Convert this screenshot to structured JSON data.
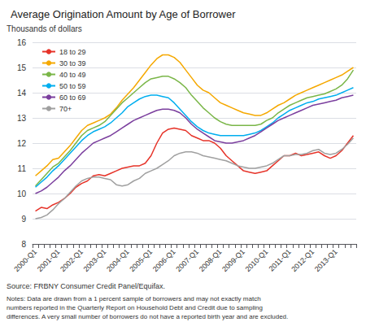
{
  "chart_data": {
    "type": "line",
    "title": "Average Origination Amount by Age of Borrower",
    "ylabel": "Thousands of dollars",
    "annotations": [
      "Source: FRBNY Consumer Credit Panel/Equifax.",
      "Notes: Data are drawn from a 1 percent sample of borrowers and may not exactly match\nnumbers reported in the Quarterly Report on Household Debt and Credit due to sampling\ndifferences. A very small number of borrowers do not have a reported birth year and are excluded."
    ],
    "categories": [
      "2000-Q1",
      null,
      null,
      null,
      "2001-Q1",
      null,
      null,
      null,
      "2002-Q1",
      null,
      null,
      null,
      "2003-Q1",
      null,
      null,
      null,
      "2004-Q1",
      null,
      null,
      null,
      "2005-Q1",
      null,
      null,
      null,
      "2006-Q1",
      null,
      null,
      null,
      "2007-Q1",
      null,
      null,
      null,
      "2008-Q1",
      null,
      null,
      null,
      "2009-Q1",
      null,
      null,
      null,
      "2010-Q1",
      null,
      null,
      null,
      "2011-Q1",
      null,
      null,
      null,
      "2012-Q1",
      null,
      null,
      null,
      "2013-Q1",
      null,
      null,
      null
    ],
    "series": [
      {
        "name": "18 to 29",
        "color": "#e63329",
        "values": [
          9.3,
          9.45,
          9.4,
          9.55,
          9.65,
          9.8,
          10.0,
          10.25,
          10.4,
          10.5,
          10.7,
          10.75,
          10.7,
          10.8,
          10.9,
          11.0,
          11.05,
          11.1,
          11.1,
          11.2,
          11.5,
          12.0,
          12.4,
          12.55,
          12.6,
          12.55,
          12.5,
          12.3,
          12.2,
          12.1,
          12.1,
          12.0,
          11.8,
          11.5,
          11.3,
          11.1,
          10.9,
          10.85,
          10.8,
          10.85,
          10.9,
          11.1,
          11.3,
          11.5,
          11.5,
          11.6,
          11.5,
          11.55,
          11.6,
          11.65,
          11.5,
          11.4,
          11.5,
          11.7,
          12.0,
          12.3
        ]
      },
      {
        "name": "30 to 39",
        "color": "#f5a800",
        "values": [
          10.7,
          10.9,
          11.1,
          11.35,
          11.4,
          11.65,
          11.9,
          12.2,
          12.5,
          12.7,
          12.8,
          12.9,
          13.0,
          13.15,
          13.4,
          13.7,
          13.95,
          14.2,
          14.5,
          14.8,
          15.1,
          15.35,
          15.5,
          15.5,
          15.4,
          15.2,
          14.9,
          14.6,
          14.3,
          14.1,
          14.0,
          13.8,
          13.6,
          13.5,
          13.4,
          13.3,
          13.2,
          13.15,
          13.1,
          13.1,
          13.2,
          13.35,
          13.5,
          13.6,
          13.75,
          13.9,
          14.0,
          14.1,
          14.2,
          14.3,
          14.4,
          14.5,
          14.6,
          14.7,
          14.85,
          15.0
        ]
      },
      {
        "name": "40 to 49",
        "color": "#7ab648",
        "values": [
          10.3,
          10.55,
          10.8,
          11.05,
          11.2,
          11.45,
          11.7,
          12.0,
          12.3,
          12.5,
          12.6,
          12.7,
          12.85,
          13.1,
          13.35,
          13.6,
          13.8,
          14.0,
          14.2,
          14.4,
          14.55,
          14.6,
          14.65,
          14.65,
          14.55,
          14.4,
          14.2,
          13.9,
          13.65,
          13.4,
          13.2,
          13.0,
          12.85,
          12.75,
          12.7,
          12.7,
          12.7,
          12.7,
          12.7,
          12.75,
          12.9,
          13.0,
          13.2,
          13.35,
          13.5,
          13.6,
          13.7,
          13.8,
          13.85,
          13.9,
          13.95,
          14.05,
          14.15,
          14.3,
          14.55,
          14.9
        ]
      },
      {
        "name": "50 to 59",
        "color": "#00aeef",
        "values": [
          10.25,
          10.45,
          10.65,
          10.9,
          11.1,
          11.35,
          11.6,
          11.85,
          12.1,
          12.3,
          12.45,
          12.55,
          12.65,
          12.8,
          13.0,
          13.2,
          13.45,
          13.6,
          13.75,
          13.85,
          13.9,
          13.9,
          13.85,
          13.8,
          13.6,
          13.35,
          13.1,
          12.85,
          12.65,
          12.5,
          12.4,
          12.35,
          12.3,
          12.3,
          12.3,
          12.3,
          12.3,
          12.35,
          12.4,
          12.5,
          12.65,
          12.8,
          13.0,
          13.15,
          13.3,
          13.4,
          13.5,
          13.6,
          13.65,
          13.75,
          13.8,
          13.85,
          13.9,
          14.0,
          14.1,
          14.2
        ]
      },
      {
        "name": "60 to 69",
        "color": "#7b3f9e",
        "values": [
          10.0,
          10.1,
          10.25,
          10.45,
          10.65,
          10.9,
          11.1,
          11.35,
          11.6,
          11.8,
          12.0,
          12.1,
          12.2,
          12.3,
          12.45,
          12.6,
          12.75,
          12.9,
          13.0,
          13.1,
          13.2,
          13.3,
          13.35,
          13.35,
          13.3,
          13.2,
          13.0,
          12.75,
          12.55,
          12.4,
          12.25,
          12.1,
          12.05,
          12.0,
          12.0,
          12.05,
          12.1,
          12.2,
          12.3,
          12.45,
          12.6,
          12.75,
          12.9,
          13.0,
          13.1,
          13.2,
          13.3,
          13.4,
          13.5,
          13.55,
          13.6,
          13.65,
          13.7,
          13.8,
          13.85,
          13.9
        ]
      },
      {
        "name": "70+",
        "color": "#a0a0a0",
        "values": [
          9.0,
          9.05,
          9.15,
          9.35,
          9.6,
          9.8,
          10.05,
          10.3,
          10.5,
          10.6,
          10.65,
          10.65,
          10.6,
          10.55,
          10.35,
          10.3,
          10.35,
          10.5,
          10.6,
          10.8,
          10.9,
          11.0,
          11.15,
          11.3,
          11.5,
          11.6,
          11.65,
          11.65,
          11.6,
          11.5,
          11.45,
          11.4,
          11.35,
          11.3,
          11.2,
          11.1,
          11.05,
          11.0,
          11.0,
          11.05,
          11.1,
          11.2,
          11.35,
          11.5,
          11.5,
          11.55,
          11.55,
          11.6,
          11.7,
          11.75,
          11.6,
          11.55,
          11.6,
          11.75,
          11.95,
          12.2
        ]
      }
    ],
    "ylim": [
      8,
      16
    ],
    "yticks": [
      8,
      9,
      10,
      11,
      12,
      13,
      14,
      15,
      16
    ],
    "grid": true,
    "legend": "upper left"
  }
}
